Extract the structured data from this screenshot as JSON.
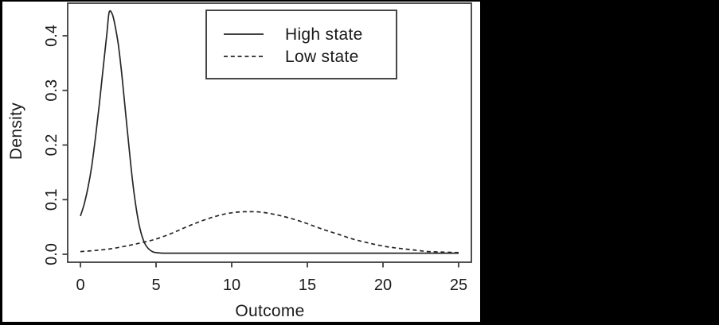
{
  "colors": {
    "letterbox": "#000000",
    "plot_background": "#ffffff",
    "line_color": "#262626",
    "frame_color": "#3d3d3d",
    "text_color": "#1a1a1a"
  },
  "chart_data": {
    "type": "line",
    "title": "",
    "xlabel": "Outcome",
    "ylabel": "Density",
    "xlim": [
      0,
      25
    ],
    "ylim": [
      0,
      0.46
    ],
    "x_ticks": [
      0,
      5,
      10,
      15,
      20,
      25
    ],
    "x_tick_labels": [
      "0",
      "5",
      "10",
      "15",
      "20",
      "25"
    ],
    "y_ticks": [
      0.0,
      0.1,
      0.2,
      0.3,
      0.4
    ],
    "y_tick_labels": [
      "0.0",
      "0.1",
      "0.2",
      "0.3",
      "0.4"
    ],
    "grid": false,
    "legend_position": "top-center-inside",
    "series": [
      {
        "name": "High state",
        "line_style": "solid",
        "color": "#262626",
        "points": [
          [
            0,
            0.07
          ],
          [
            0.25,
            0.092
          ],
          [
            0.5,
            0.122
          ],
          [
            0.75,
            0.162
          ],
          [
            1.0,
            0.215
          ],
          [
            1.25,
            0.275
          ],
          [
            1.5,
            0.34
          ],
          [
            1.75,
            0.405
          ],
          [
            1.9,
            0.443
          ],
          [
            2.1,
            0.44
          ],
          [
            2.25,
            0.424
          ],
          [
            2.5,
            0.385
          ],
          [
            2.75,
            0.325
          ],
          [
            3.0,
            0.255
          ],
          [
            3.25,
            0.185
          ],
          [
            3.5,
            0.122
          ],
          [
            3.75,
            0.073
          ],
          [
            4.0,
            0.04
          ],
          [
            4.25,
            0.02
          ],
          [
            4.5,
            0.01
          ],
          [
            4.75,
            0.005
          ],
          [
            5.0,
            0.003
          ],
          [
            5.5,
            0.002
          ],
          [
            6.0,
            0.002
          ],
          [
            8.0,
            0.002
          ],
          [
            10.0,
            0.002
          ],
          [
            12.0,
            0.002
          ],
          [
            14.0,
            0.002
          ],
          [
            16.0,
            0.002
          ],
          [
            18.0,
            0.002
          ],
          [
            20.0,
            0.002
          ],
          [
            22.0,
            0.002
          ],
          [
            24.0,
            0.002
          ],
          [
            25.0,
            0.002
          ]
        ]
      },
      {
        "name": "Low state",
        "line_style": "dashed",
        "color": "#262626",
        "points": [
          [
            0,
            0.005
          ],
          [
            1,
            0.007
          ],
          [
            2,
            0.01
          ],
          [
            3,
            0.015
          ],
          [
            4,
            0.021
          ],
          [
            5,
            0.028
          ],
          [
            6,
            0.038
          ],
          [
            7,
            0.05
          ],
          [
            8,
            0.061
          ],
          [
            9,
            0.07
          ],
          [
            10,
            0.076
          ],
          [
            11,
            0.078
          ],
          [
            12,
            0.077
          ],
          [
            13,
            0.072
          ],
          [
            14,
            0.065
          ],
          [
            15,
            0.056
          ],
          [
            16,
            0.046
          ],
          [
            17,
            0.037
          ],
          [
            18,
            0.028
          ],
          [
            19,
            0.021
          ],
          [
            20,
            0.015
          ],
          [
            21,
            0.011
          ],
          [
            22,
            0.008
          ],
          [
            23,
            0.005
          ],
          [
            24,
            0.004
          ],
          [
            25,
            0.003
          ]
        ]
      }
    ]
  }
}
